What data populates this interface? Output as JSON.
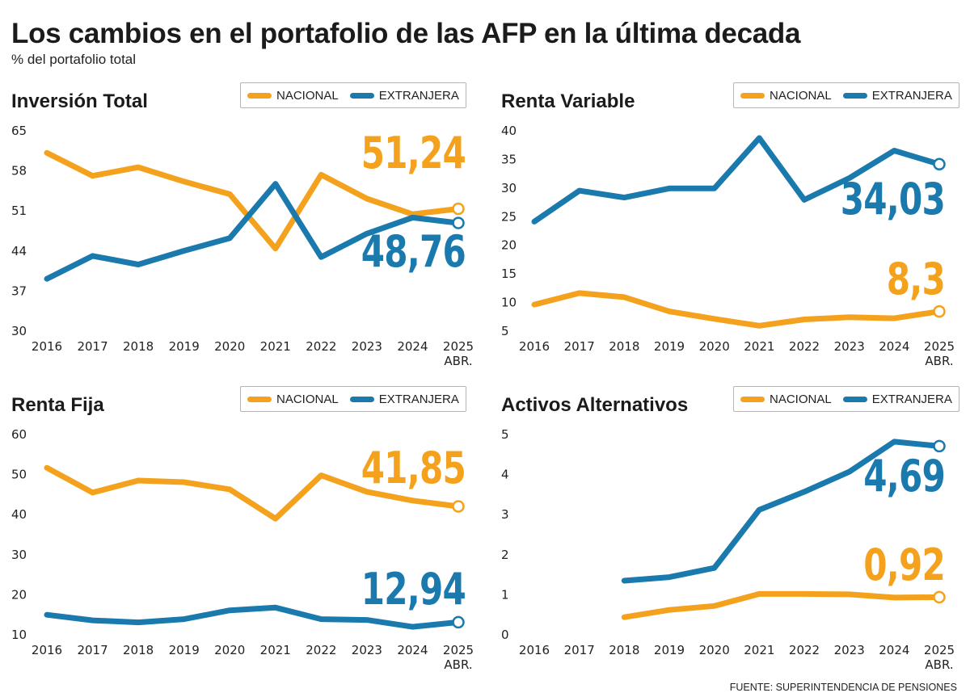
{
  "title": "Los cambios en el portafolio de las AFP en la última decada",
  "subtitle": "% del portafolio total",
  "source": "FUENTE: SUPERINTENDENCIA DE PENSIONES",
  "colors": {
    "nacional": "#f4a21d",
    "extranjera": "#1a79ad"
  },
  "legend": {
    "nacional": "NACIONAL",
    "extranjera": "EXTRANJERA"
  },
  "x_tick_labels": [
    "2016",
    "2017",
    "2018",
    "2019",
    "2020",
    "2021",
    "2022",
    "2023",
    "2024",
    "2025"
  ],
  "x_last_sublabel": "ABR.",
  "chart_data": [
    {
      "type": "line",
      "title": "Inversión Total",
      "x": [
        "2016",
        "2017",
        "2018",
        "2019",
        "2020",
        "2021",
        "2022",
        "2023",
        "2024",
        "2025 ABR."
      ],
      "ylim": [
        30,
        65
      ],
      "yticks": [
        30,
        37,
        44,
        51,
        58,
        65
      ],
      "series": [
        {
          "name": "NACIONAL",
          "values": [
            61.0,
            57.0,
            58.5,
            56.0,
            53.8,
            44.3,
            57.2,
            53.0,
            50.3,
            51.24
          ]
        },
        {
          "name": "EXTRANJERA",
          "values": [
            39.0,
            43.0,
            41.5,
            43.9,
            46.1,
            55.6,
            42.8,
            46.9,
            49.7,
            48.76
          ]
        }
      ],
      "labels": [
        {
          "text": "51,24",
          "series": "NACIONAL"
        },
        {
          "text": "48,76",
          "series": "EXTRANJERA"
        }
      ]
    },
    {
      "type": "line",
      "title": "Renta Variable",
      "x": [
        "2016",
        "2017",
        "2018",
        "2019",
        "2020",
        "2021",
        "2022",
        "2023",
        "2024",
        "2025 ABR."
      ],
      "ylim": [
        5,
        40
      ],
      "yticks": [
        5,
        10,
        15,
        20,
        25,
        30,
        35,
        40
      ],
      "series": [
        {
          "name": "NACIONAL",
          "values": [
            9.5,
            11.5,
            10.8,
            8.3,
            7.0,
            5.8,
            6.9,
            7.3,
            7.1,
            8.3
          ]
        },
        {
          "name": "EXTRANJERA",
          "values": [
            24.0,
            29.4,
            28.2,
            29.8,
            29.8,
            38.6,
            27.8,
            31.6,
            36.4,
            34.03
          ]
        }
      ],
      "labels": [
        {
          "text": "34,03",
          "series": "EXTRANJERA"
        },
        {
          "text": "8,3",
          "series": "NACIONAL"
        }
      ]
    },
    {
      "type": "line",
      "title": "Renta Fija",
      "x": [
        "2016",
        "2017",
        "2018",
        "2019",
        "2020",
        "2021",
        "2022",
        "2023",
        "2024",
        "2025 ABR."
      ],
      "ylim": [
        10,
        60
      ],
      "yticks": [
        10,
        20,
        30,
        40,
        50,
        60
      ],
      "series": [
        {
          "name": "NACIONAL",
          "values": [
            51.5,
            45.3,
            48.3,
            47.9,
            46.1,
            38.8,
            49.6,
            45.5,
            43.3,
            41.85
          ]
        },
        {
          "name": "EXTRANJERA",
          "values": [
            14.8,
            13.4,
            12.9,
            13.7,
            15.9,
            16.6,
            13.7,
            13.5,
            11.8,
            12.94
          ]
        }
      ],
      "labels": [
        {
          "text": "41,85",
          "series": "NACIONAL"
        },
        {
          "text": "12,94",
          "series": "EXTRANJERA"
        }
      ]
    },
    {
      "type": "line",
      "title": "Activos Alternativos",
      "x": [
        "2016",
        "2017",
        "2018",
        "2019",
        "2020",
        "2021",
        "2022",
        "2023",
        "2024",
        "2025 ABR."
      ],
      "ylim": [
        0,
        5
      ],
      "yticks": [
        0,
        1,
        2,
        3,
        4,
        5
      ],
      "series": [
        {
          "name": "NACIONAL",
          "values": [
            null,
            null,
            0.42,
            0.6,
            0.7,
            1.0,
            1.0,
            0.99,
            0.91,
            0.92
          ]
        },
        {
          "name": "EXTRANJERA",
          "values": [
            null,
            null,
            1.33,
            1.42,
            1.65,
            3.1,
            3.55,
            4.05,
            4.8,
            4.69
          ]
        }
      ],
      "labels": [
        {
          "text": "4,69",
          "series": "EXTRANJERA"
        },
        {
          "text": "0,92",
          "series": "NACIONAL"
        }
      ]
    }
  ]
}
